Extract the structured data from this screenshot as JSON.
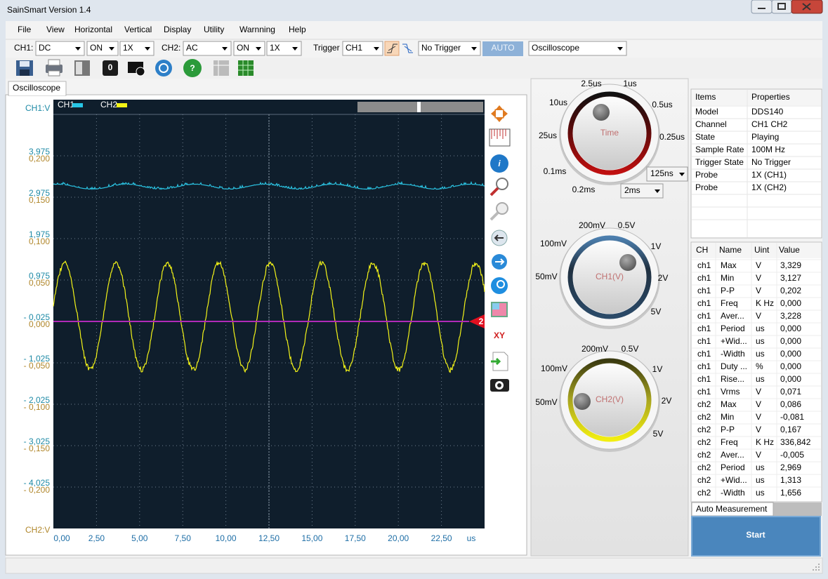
{
  "window": {
    "title": "SainSmart  Version 1.4"
  },
  "menu": [
    "File",
    "View",
    "Horizontal",
    "Vertical",
    "Display",
    "Utility",
    "Warnning",
    "Help"
  ],
  "controls": {
    "ch1_label": "CH1:",
    "ch1_coupling": "DC",
    "ch1_state": "ON",
    "ch1_probe": "1X",
    "ch2_label": "CH2:",
    "ch2_coupling": "AC",
    "ch2_state": "ON",
    "ch2_probe": "1X",
    "trigger_label": "Trigger",
    "trigger_source": "CH1",
    "trigger_mode": "No Trigger",
    "auto": "AUTO",
    "mode": "Oscilloscope"
  },
  "toolbar": {
    "zero_button": "0"
  },
  "tab": "Oscilloscope",
  "scope": {
    "ch1_axis": "CH1:V",
    "ch2_axis": "CH2:V",
    "legend": [
      "CH1",
      "CH2"
    ],
    "ch1_ticks": [
      "3,975",
      "2,975",
      "1,975",
      "0,975",
      "- 0,025",
      "- 1,025",
      "- 2,025",
      "- 3,025",
      "- 4,025"
    ],
    "ch2_ticks": [
      "0,200",
      "0,150",
      "0,100",
      "0,050",
      "0,000",
      "- 0,050",
      "- 0,100",
      "- 0,150",
      "- 0,200"
    ],
    "x_ticks": [
      "0,00",
      "2,50",
      "5,00",
      "7,50",
      "10,00",
      "12,50",
      "15,00",
      "17,50",
      "20,00",
      "22,50"
    ],
    "x_unit": "us",
    "trigger_marker": "2",
    "xy_button": "XY"
  },
  "time_knob": {
    "label": "Time",
    "settings": [
      "2.5us",
      "1us",
      "0.5us",
      "0.25us",
      "10us",
      "25us",
      "0.1ms",
      "0.2ms"
    ],
    "fine": "125ns",
    "range": "2ms"
  },
  "ch1_knob": {
    "label": "CH1(V)",
    "settings": [
      "200mV",
      "0.5V",
      "1V",
      "2V",
      "5V",
      "100mV",
      "50mV"
    ]
  },
  "ch2_knob": {
    "label": "CH2(V)",
    "settings": [
      "200mV",
      "0.5V",
      "1V",
      "2V",
      "5V",
      "100mV",
      "50mV"
    ]
  },
  "properties": {
    "headers": [
      "Items",
      "Properties"
    ],
    "rows": [
      [
        "Model",
        "DDS140"
      ],
      [
        "Channel",
        "CH1 CH2"
      ],
      [
        "State",
        "Playing"
      ],
      [
        "Sample Rate",
        "100M Hz"
      ],
      [
        "Trigger State",
        "No Trigger"
      ],
      [
        "Probe",
        "1X (CH1)"
      ],
      [
        "Probe",
        "1X (CH2)"
      ]
    ]
  },
  "measurements": {
    "headers": [
      "CH",
      "Name",
      "Uint",
      "Value"
    ],
    "rows": [
      [
        "ch1",
        "Max",
        "V",
        "3,329"
      ],
      [
        "ch1",
        "Min",
        "V",
        "3,127"
      ],
      [
        "ch1",
        "P-P",
        "V",
        "0,202"
      ],
      [
        "ch1",
        "Freq",
        "K Hz",
        "0,000"
      ],
      [
        "ch1",
        "Aver...",
        "V",
        "3,228"
      ],
      [
        "ch1",
        "Period",
        "us",
        "0,000"
      ],
      [
        "ch1",
        "+Wid...",
        "us",
        "0,000"
      ],
      [
        "ch1",
        "-Width",
        "us",
        "0,000"
      ],
      [
        "ch1",
        "Duty ...",
        "%",
        "0,000"
      ],
      [
        "ch1",
        "Rise...",
        "us",
        "0,000"
      ],
      [
        "ch1",
        "Vrms",
        "V",
        "0,071"
      ],
      [
        "ch2",
        "Max",
        "V",
        "0,086"
      ],
      [
        "ch2",
        "Min",
        "V",
        "-0,081"
      ],
      [
        "ch2",
        "P-P",
        "V",
        "0,167"
      ],
      [
        "ch2",
        "Freq",
        "K Hz",
        "336,842"
      ],
      [
        "ch2",
        "Aver...",
        "V",
        "-0,005"
      ],
      [
        "ch2",
        "Period",
        "us",
        "2,969"
      ],
      [
        "ch2",
        "+Wid...",
        "us",
        "1,313"
      ],
      [
        "ch2",
        "-Width",
        "us",
        "1,656"
      ]
    ]
  },
  "measure_tab": "Auto Measurement",
  "start_button": "Start"
}
